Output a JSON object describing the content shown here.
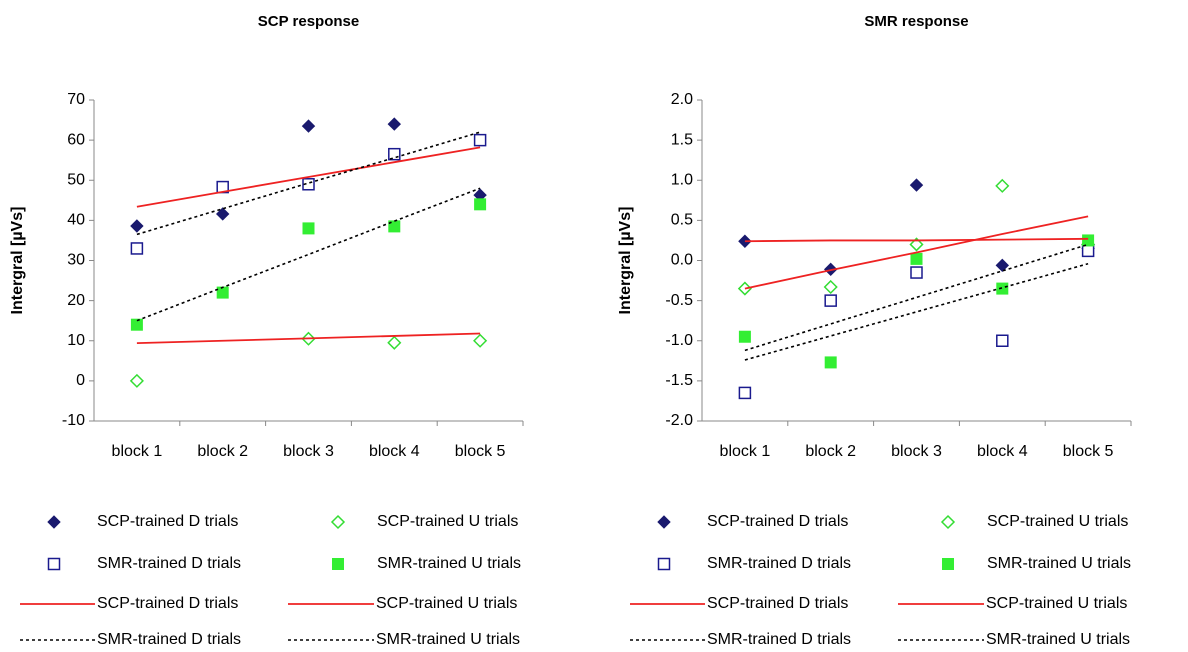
{
  "chart_data": [
    {
      "type": "scatter",
      "title": "SCP response",
      "y_label": "Intergral [µVs]",
      "categories": [
        "block 1",
        "block 2",
        "block 3",
        "block 4",
        "block 5"
      ],
      "ylim": [
        -10,
        70
      ],
      "yticks": [
        -10,
        0,
        10,
        20,
        30,
        40,
        50,
        60,
        70
      ],
      "series": [
        {
          "name": "SCP-trained D trials",
          "color": "#1a1a6e",
          "marker": "diamond",
          "values": [
            38.6,
            41.6,
            63.5,
            64,
            46.3
          ]
        },
        {
          "name": "SCP-trained U trials",
          "color": "#33dd33",
          "marker": "diamond-open",
          "values": [
            0,
            null,
            10.5,
            9.5,
            10
          ]
        },
        {
          "name": "SMR-trained D trials",
          "color": "#1a1a8e",
          "marker": "square-open",
          "values": [
            33,
            48.3,
            49,
            56.5,
            60
          ]
        },
        {
          "name": "SMR-trained U trials",
          "color": "#33ee33",
          "marker": "square",
          "values": [
            14,
            22,
            38,
            38.5,
            44
          ]
        },
        {
          "name": "SCP-trained D trials",
          "color": "#ee2222",
          "line": "solid",
          "values": [
            43.4,
            47.1,
            50.8,
            54.5,
            58.2
          ]
        },
        {
          "name": "SCP-trained U trials",
          "color": "#ee2222",
          "line": "solid",
          "values": [
            9.4,
            10,
            10.6,
            11.2,
            11.8
          ]
        },
        {
          "name": "SMR-trained D trials",
          "color": "#000000",
          "line": "dotted",
          "values": [
            36.5,
            42.9,
            49.3,
            55.6,
            62
          ]
        },
        {
          "name": "SMR-trained U trials",
          "color": "#000000",
          "line": "dotted",
          "values": [
            15,
            23.3,
            31.5,
            39.8,
            48
          ]
        }
      ]
    },
    {
      "type": "scatter",
      "title": "SMR response",
      "y_label": "Intergral [µVs]",
      "categories": [
        "block 1",
        "block 2",
        "block 3",
        "block 4",
        "block 5"
      ],
      "ylim": [
        -2,
        2
      ],
      "yticks": [
        {
          "value": -2,
          "label": "-2.0"
        },
        {
          "value": -1.5,
          "label": "-1.5"
        },
        {
          "value": -1,
          "label": "-1.0"
        },
        {
          "value": -0.5,
          "label": "-0.5"
        },
        {
          "value": 0,
          "label": "0.0"
        },
        {
          "value": 0.5,
          "label": "0.5"
        },
        {
          "value": 1,
          "label": "1.0"
        },
        {
          "value": 1.5,
          "label": "1.5"
        },
        {
          "value": 2,
          "label": "2.0"
        }
      ],
      "series": [
        {
          "name": "SCP-trained D trials",
          "color": "#1a1a6e",
          "marker": "diamond",
          "values": [
            0.24,
            -0.11,
            0.94,
            -0.06,
            0.15
          ]
        },
        {
          "name": "SCP-trained U trials",
          "color": "#33dd33",
          "marker": "diamond-open",
          "values": [
            -0.35,
            -0.33,
            0.2,
            0.93,
            0.2
          ]
        },
        {
          "name": "SMR-trained D trials",
          "color": "#1a1a8e",
          "marker": "square-open",
          "values": [
            -1.65,
            -0.5,
            -0.15,
            -1,
            0.12
          ]
        },
        {
          "name": "SMR-trained U trials",
          "color": "#33ee33",
          "marker": "square",
          "values": [
            -0.95,
            -1.27,
            0.02,
            -0.35,
            0.25
          ]
        },
        {
          "name": "SCP-trained D trials",
          "color": "#ee2222",
          "line": "solid",
          "values": [
            0.24,
            0.25,
            0.25,
            0.26,
            0.27
          ]
        },
        {
          "name": "SCP-trained U trials",
          "color": "#ee2222",
          "line": "solid",
          "values": [
            -0.35,
            -0.12,
            0.1,
            0.33,
            0.55
          ]
        },
        {
          "name": "SMR-trained D trials",
          "color": "#000000",
          "line": "dotted",
          "values": [
            -1.24,
            -0.94,
            -0.64,
            -0.34,
            -0.04
          ]
        },
        {
          "name": "SMR-trained U trials",
          "color": "#000000",
          "line": "dotted",
          "values": [
            -1.12,
            -0.79,
            -0.46,
            -0.13,
            0.2
          ]
        }
      ]
    }
  ]
}
